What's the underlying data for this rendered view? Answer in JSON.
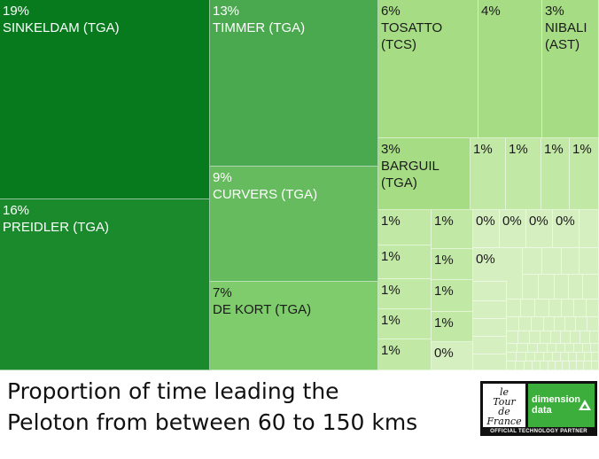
{
  "caption": {
    "line1": "Proportion of time leading the",
    "line2": "Peloton from between 60 to 150 kms"
  },
  "logo": {
    "tdf_text": "le\nTour\nde\nFrance",
    "dd_text": "dimension\ndata",
    "partner_text": "OFFICIAL TECHNOLOGY PARTNER"
  },
  "chart_data": {
    "type": "treemap",
    "title": "Proportion of time leading the Peloton from between 60 to 150 kms",
    "colors": {
      "darkest": "#077a1e",
      "dark": "#1b8a2c",
      "medium_dark": "#4aa84e",
      "medium": "#66bb5e",
      "medium_light": "#7fcc6c",
      "light": "#a6dd84",
      "lighter": "#c2e8a6",
      "lightest": "#d6efc0"
    },
    "items": [
      {
        "label": "19%\nSINKELDAM (TGA)",
        "rider": "SINKELDAM (TGA)",
        "value": 19,
        "color": "#077a1e"
      },
      {
        "label": "16%\nPREIDLER (TGA)",
        "rider": "PREIDLER (TGA)",
        "value": 16,
        "color": "#1b8a2c"
      },
      {
        "label": "13%\nTIMMER (TGA)",
        "rider": "TIMMER (TGA)",
        "value": 13,
        "color": "#4aa84e"
      },
      {
        "label": "9%\nCURVERS (TGA)",
        "rider": "CURVERS (TGA)",
        "value": 9,
        "color": "#66bb5e"
      },
      {
        "label": "7%\nDE KORT (TGA)",
        "rider": "DE KORT (TGA)",
        "value": 7,
        "color": "#7fcc6c"
      },
      {
        "label": "6%\nTOSATTO\n(TCS)",
        "rider": "TOSATTO (TCS)",
        "value": 6,
        "color": "#a6dd84"
      },
      {
        "label": "4%",
        "rider": "",
        "value": 4,
        "color": "#a6dd84"
      },
      {
        "label": "3%\nNIBALI\n(AST)",
        "rider": "NIBALI (AST)",
        "value": 3,
        "color": "#a6dd84"
      },
      {
        "label": "3%\nBARGUIL\n(TGA)",
        "rider": "BARGUIL (TGA)",
        "value": 3,
        "color": "#a6dd84"
      },
      {
        "label": "1%",
        "value": 1,
        "color": "#c2e8a6"
      },
      {
        "label": "1%",
        "value": 1,
        "color": "#c2e8a6"
      },
      {
        "label": "1%",
        "value": 1,
        "color": "#c2e8a6"
      },
      {
        "label": "1%",
        "value": 1,
        "color": "#c2e8a6"
      },
      {
        "label": "1%",
        "value": 1,
        "color": "#c2e8a6"
      },
      {
        "label": "1%",
        "value": 1,
        "color": "#c2e8a6"
      },
      {
        "label": "1%",
        "value": 1,
        "color": "#c2e8a6"
      },
      {
        "label": "1%",
        "value": 1,
        "color": "#c2e8a6"
      },
      {
        "label": "1%",
        "value": 1,
        "color": "#c2e8a6"
      },
      {
        "label": "1%",
        "value": 1,
        "color": "#c2e8a6"
      },
      {
        "label": "1%",
        "value": 1,
        "color": "#c2e8a6"
      },
      {
        "label": "1%",
        "value": 1,
        "color": "#c2e8a6"
      },
      {
        "label": "1%",
        "value": 1,
        "color": "#c2e8a6"
      },
      {
        "label": "0%",
        "value": 0,
        "color": "#d6efc0"
      },
      {
        "label": "0%",
        "value": 0,
        "color": "#d6efc0"
      },
      {
        "label": "0%",
        "value": 0,
        "color": "#d6efc0"
      },
      {
        "label": "0%",
        "value": 0,
        "color": "#d6efc0"
      },
      {
        "label": "0%",
        "value": 0,
        "color": "#d6efc0"
      },
      {
        "label": "0%",
        "value": 0,
        "color": "#d6efc0"
      }
    ]
  }
}
